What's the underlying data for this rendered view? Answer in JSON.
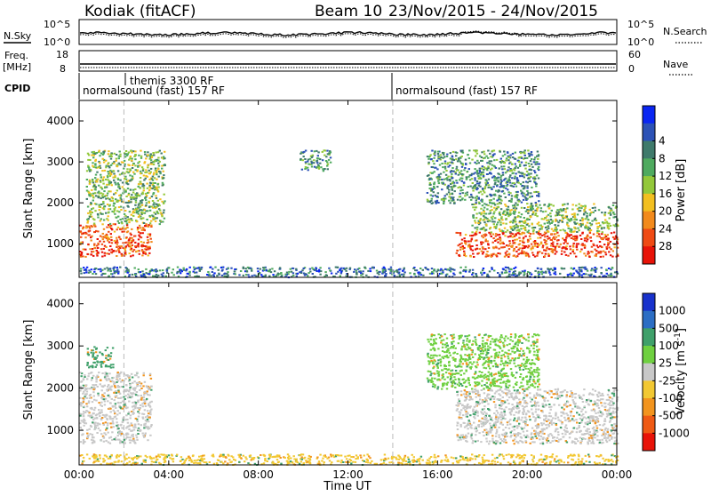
{
  "header": {
    "station": "Kodiak (fitACF)",
    "beam": "Beam 10",
    "date_range": "23/Nov/2015 - 24/Nov/2015"
  },
  "noise_panel": {
    "left_label": "N.Sky",
    "right_label": "N.Search",
    "ticks_left": [
      "10^5",
      "10^0"
    ],
    "ticks_right": [
      "10^5",
      "10^0"
    ]
  },
  "freq_panel": {
    "left_label_line1": "Freq.",
    "left_label_line2": "[MHz]",
    "right_label": "Nave",
    "ticks_left": [
      "18",
      "8"
    ],
    "ticks_right": [
      "60",
      "0"
    ]
  },
  "cpid_panel": {
    "label": "CPID",
    "segments": [
      {
        "start_h": 0.0,
        "label": "normalsound (fast) 157 RF"
      },
      {
        "start_h": 2.0,
        "label": "themis 3300 RF"
      },
      {
        "start_h": 14.0,
        "label": "normalsound (fast) 157 RF"
      }
    ]
  },
  "chart_data": [
    {
      "type": "heatmap",
      "title": "",
      "xlabel": "",
      "ylabel": "Slant Range [km]",
      "x_range_hours": [
        0,
        24
      ],
      "ylim": [
        180,
        4500
      ],
      "yticks": [
        1000,
        2000,
        3000,
        4000
      ],
      "colorbar": {
        "label": "Power [dB]",
        "ticks": [
          4,
          8,
          12,
          16,
          20,
          24,
          28
        ],
        "colors": [
          "#0a26f2",
          "#2c52b6",
          "#3f7a6b",
          "#4faa5f",
          "#93c83a",
          "#f2bf20",
          "#f28a1c",
          "#ef4a14",
          "#e81308"
        ]
      },
      "echo_regions": [
        {
          "t": [
            0.0,
            3.2
          ],
          "range_km": [
            700,
            1500
          ],
          "power_db": 28
        },
        {
          "t": [
            0.3,
            3.8
          ],
          "range_km": [
            1500,
            3300
          ],
          "power_db": 14
        },
        {
          "t": [
            9.8,
            11.2
          ],
          "range_km": [
            2800,
            3300
          ],
          "power_db": 10
        },
        {
          "t": [
            16.8,
            24.0
          ],
          "range_km": [
            700,
            1300
          ],
          "power_db": 28
        },
        {
          "t": [
            17.5,
            24.0
          ],
          "range_km": [
            1300,
            2000
          ],
          "power_db": 14
        },
        {
          "t": [
            15.5,
            20.5
          ],
          "range_km": [
            2000,
            3300
          ],
          "power_db": 10
        },
        {
          "t": [
            0.0,
            24.0
          ],
          "range_km": [
            200,
            450
          ],
          "power_db": 6
        }
      ]
    },
    {
      "type": "heatmap",
      "title": "",
      "xlabel": "Time UT",
      "ylabel": "Slant Range [km]",
      "x_range_hours": [
        0,
        24
      ],
      "ylim": [
        180,
        4500
      ],
      "yticks": [
        1000,
        2000,
        3000,
        4000
      ],
      "xticks": [
        "00:00",
        "04:00",
        "08:00",
        "12:00",
        "16:00",
        "20:00",
        "00:00"
      ],
      "colorbar": {
        "label": "Velocity [m s^-1]",
        "ticks": [
          "1000",
          "500",
          "100",
          "25",
          "-25",
          "-100",
          "-500",
          "-1000"
        ],
        "colors": [
          "#1832cc",
          "#2c6ec4",
          "#3fa06a",
          "#6fd040",
          "#c8c8c8",
          "#f2c832",
          "#f2941e",
          "#ef5a14",
          "#e81308"
        ]
      },
      "echo_regions": [
        {
          "t": [
            0.0,
            3.2
          ],
          "range_km": [
            700,
            2400
          ],
          "velocity": 0
        },
        {
          "t": [
            0.3,
            1.5
          ],
          "range_km": [
            2500,
            3000
          ],
          "velocity": 100
        },
        {
          "t": [
            16.8,
            24.0
          ],
          "range_km": [
            700,
            2000
          ],
          "velocity": 0
        },
        {
          "t": [
            15.5,
            20.5
          ],
          "range_km": [
            2000,
            3300
          ],
          "velocity": 25
        },
        {
          "t": [
            0.0,
            24.0
          ],
          "range_km": [
            200,
            450
          ],
          "velocity": -100
        }
      ]
    }
  ]
}
